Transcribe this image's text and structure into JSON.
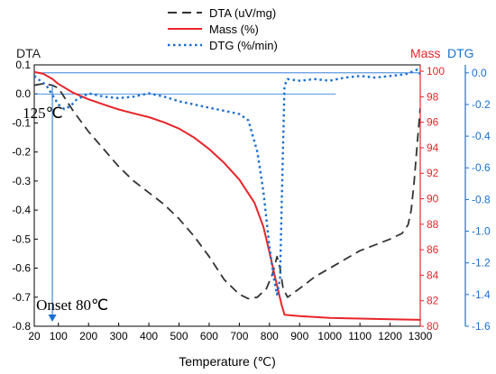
{
  "chart_data": {
    "type": "line",
    "xlabel": "Temperature (℃)",
    "x_ticks": [
      20,
      100,
      200,
      300,
      400,
      500,
      600,
      700,
      800,
      900,
      1000,
      1100,
      1200,
      1300
    ],
    "xlim": [
      20,
      1300
    ],
    "axes": {
      "dta": {
        "label": "DTA",
        "color": "#222222",
        "ylim": [
          -0.8,
          0.1
        ],
        "ticks": [
          0.1,
          0.0,
          -0.1,
          -0.2,
          -0.3,
          -0.4,
          -0.5,
          -0.6,
          -0.7,
          -0.8
        ],
        "tick_labels": [
          "0.1",
          "0.0",
          "-0.1",
          "-0.2",
          "-0.3",
          "-0.4",
          "-0.5",
          "-0.6",
          "-0.7",
          "-0.8"
        ]
      },
      "mass": {
        "label": "Mass",
        "color": "#e8252a",
        "ylim": [
          80,
          100.5
        ],
        "ticks": [
          100,
          98,
          96,
          94,
          92,
          90,
          88,
          86,
          84,
          82,
          80
        ],
        "tick_labels": [
          "100",
          "98",
          "96",
          "94",
          "92",
          "90",
          "88",
          "86",
          "84",
          "82",
          "80"
        ]
      },
      "dtg": {
        "label": "DTG",
        "color": "#1a6fd0",
        "ylim": [
          -1.6,
          0.05
        ],
        "ticks": [
          0.0,
          -0.2,
          -0.4,
          -0.6,
          -0.8,
          -1.0,
          -1.2,
          -1.4,
          -1.6
        ],
        "tick_labels": [
          "0.0",
          "-0.2",
          "-0.4",
          "-0.6",
          "-0.8",
          "-1.0",
          "-1.2",
          "-1.4",
          "-1.6"
        ]
      }
    },
    "series": [
      {
        "name": "DTA (uV/mg)",
        "axis": "dta",
        "color": "#333333",
        "style": "dashed",
        "x": [
          20,
          50,
          80,
          100,
          125,
          150,
          200,
          250,
          300,
          350,
          400,
          450,
          500,
          550,
          600,
          650,
          700,
          730,
          760,
          790,
          810,
          825,
          835,
          845,
          860,
          900,
          950,
          1000,
          1050,
          1100,
          1150,
          1200,
          1240,
          1260,
          1270,
          1280,
          1290,
          1300
        ],
        "y": [
          0.03,
          0.035,
          0.03,
          0.02,
          -0.02,
          -0.06,
          -0.13,
          -0.19,
          -0.25,
          -0.3,
          -0.34,
          -0.38,
          -0.43,
          -0.49,
          -0.56,
          -0.64,
          -0.69,
          -0.705,
          -0.7,
          -0.67,
          -0.62,
          -0.56,
          -0.6,
          -0.67,
          -0.7,
          -0.67,
          -0.63,
          -0.6,
          -0.57,
          -0.54,
          -0.52,
          -0.5,
          -0.48,
          -0.45,
          -0.4,
          -0.3,
          -0.17,
          -0.05
        ]
      },
      {
        "name": "Mass (%)",
        "axis": "mass",
        "color": "#e8252a",
        "style": "solid",
        "x": [
          20,
          50,
          80,
          100,
          150,
          200,
          250,
          300,
          350,
          400,
          450,
          500,
          550,
          600,
          650,
          700,
          750,
          780,
          800,
          820,
          840,
          850,
          900,
          1000,
          1100,
          1200,
          1300
        ],
        "y": [
          99.95,
          99.8,
          99.4,
          99.0,
          98.3,
          97.8,
          97.4,
          97.0,
          96.7,
          96.4,
          96.0,
          95.5,
          94.8,
          93.9,
          92.8,
          91.5,
          89.7,
          87.8,
          85.8,
          83.7,
          81.7,
          80.9,
          80.8,
          80.65,
          80.6,
          80.55,
          80.5
        ]
      },
      {
        "name": "DTG (%/min)",
        "axis": "dtg",
        "color": "#1a6fd0",
        "style": "dotted",
        "x": [
          20,
          40,
          60,
          80,
          100,
          120,
          140,
          160,
          180,
          200,
          250,
          300,
          350,
          400,
          450,
          500,
          550,
          600,
          650,
          700,
          730,
          760,
          780,
          800,
          815,
          825,
          835,
          842,
          850,
          860,
          900,
          950,
          1000,
          1050,
          1100,
          1150,
          1200,
          1250,
          1290,
          1300
        ],
        "y": [
          -0.02,
          -0.05,
          -0.08,
          -0.14,
          -0.2,
          -0.23,
          -0.21,
          -0.17,
          -0.15,
          -0.13,
          -0.15,
          -0.16,
          -0.15,
          -0.13,
          -0.15,
          -0.18,
          -0.2,
          -0.22,
          -0.24,
          -0.26,
          -0.3,
          -0.5,
          -0.75,
          -1.1,
          -1.3,
          -1.4,
          -1.3,
          -0.7,
          -0.08,
          -0.04,
          -0.05,
          -0.04,
          -0.05,
          -0.03,
          -0.02,
          -0.03,
          -0.02,
          -0.01,
          0.02,
          -0.01
        ]
      }
    ],
    "legend_position": "top-center",
    "annotations": [
      {
        "text": "125℃",
        "x": 125,
        "y": -0.04,
        "axis": "dta"
      },
      {
        "text": "Onset 80℃",
        "x": 80,
        "y": -0.7,
        "axis": "dta"
      }
    ],
    "guide_lines": [
      {
        "axis": "dta",
        "orientation": "horizontal",
        "y": 0.0,
        "x_from": 20,
        "x_to": 1020,
        "color": "#1a6fd0"
      },
      {
        "axis": "dtg",
        "orientation": "horizontal",
        "y": 0.0,
        "x_from": 20,
        "x_to": 1300,
        "color": "#1a6fd0"
      },
      {
        "axis": "dta",
        "orientation": "vertical",
        "x": 80,
        "y_from": 0.03,
        "y_to": -0.8,
        "color": "#1a6fd0",
        "arrow": true
      }
    ]
  }
}
